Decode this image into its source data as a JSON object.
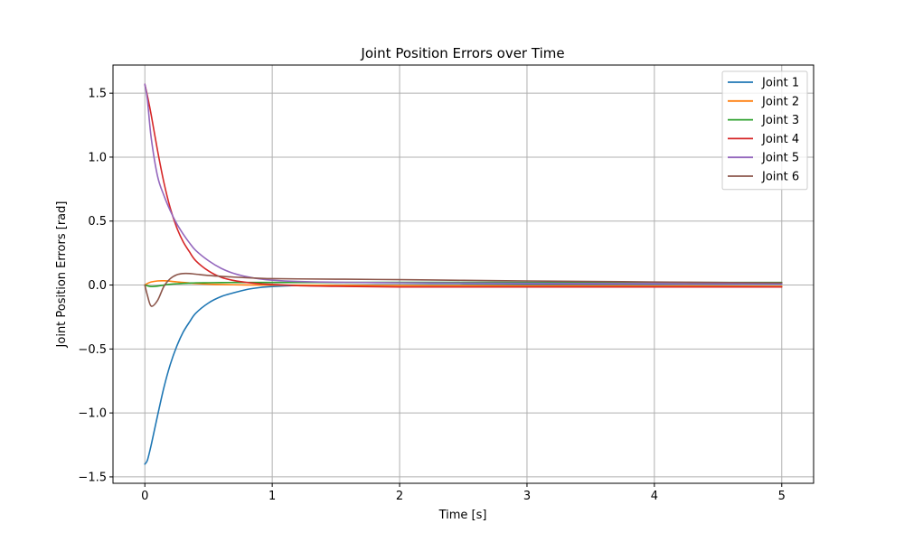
{
  "chart_data": {
    "type": "line",
    "title": "Joint Position Errors over Time",
    "xlabel": "Time [s]",
    "ylabel": "Joint Position Errors [rad]",
    "xlim": [
      -0.25,
      5.25
    ],
    "ylim": [
      -1.55,
      1.72
    ],
    "xticks": [
      0,
      1,
      2,
      3,
      4,
      5
    ],
    "xtick_labels": [
      "0",
      "1",
      "2",
      "3",
      "4",
      "5"
    ],
    "yticks": [
      -1.5,
      -1.0,
      -0.5,
      0.0,
      0.5,
      1.0,
      1.5
    ],
    "ytick_labels": [
      "−1.5",
      "−1.0",
      "−0.5",
      "0.0",
      "0.5",
      "1.0",
      "1.5"
    ],
    "grid": true,
    "legend_position": "top-right",
    "x": [
      0,
      0.02,
      0.05,
      0.1,
      0.15,
      0.2,
      0.25,
      0.3,
      0.35,
      0.4,
      0.5,
      0.6,
      0.7,
      0.8,
      0.9,
      1.0,
      1.2,
      1.5,
      2.0,
      2.5,
      3.0,
      3.5,
      4.0,
      4.5,
      5.0
    ],
    "series": [
      {
        "name": "Joint 1",
        "color": "#1f77b4",
        "values": [
          -1.4,
          -1.37,
          -1.25,
          -1.02,
          -0.8,
          -0.62,
          -0.48,
          -0.37,
          -0.29,
          -0.22,
          -0.14,
          -0.09,
          -0.06,
          -0.035,
          -0.02,
          -0.012,
          -0.004,
          0.0,
          0.002,
          0.003,
          0.004,
          0.005,
          0.006,
          0.007,
          0.008
        ]
      },
      {
        "name": "Joint 2",
        "color": "#ff7f0e",
        "values": [
          0.0,
          0.012,
          0.024,
          0.032,
          0.033,
          0.03,
          0.025,
          0.02,
          0.016,
          0.012,
          0.007,
          0.004,
          0.002,
          0.001,
          0.0,
          0.0,
          -0.001,
          -0.002,
          -0.003,
          -0.004,
          -0.005,
          -0.006,
          -0.007,
          -0.008,
          -0.01
        ]
      },
      {
        "name": "Joint 3",
        "color": "#2ca02c",
        "values": [
          0.0,
          -0.006,
          -0.012,
          -0.008,
          0.0,
          0.006,
          0.01,
          0.013,
          0.015,
          0.017,
          0.018,
          0.019,
          0.02,
          0.02,
          0.02,
          0.02,
          0.02,
          0.02,
          0.021,
          0.021,
          0.021,
          0.021,
          0.021,
          0.02,
          0.02
        ]
      },
      {
        "name": "Joint 4",
        "color": "#d62728",
        "values": [
          1.57,
          1.48,
          1.33,
          1.05,
          0.8,
          0.6,
          0.45,
          0.34,
          0.26,
          0.19,
          0.11,
          0.06,
          0.035,
          0.02,
          0.01,
          0.005,
          -0.005,
          -0.01,
          -0.015,
          -0.015,
          -0.015,
          -0.015,
          -0.015,
          -0.015,
          -0.015
        ]
      },
      {
        "name": "Joint 5",
        "color": "#9467bd",
        "values": [
          1.57,
          1.45,
          1.15,
          0.85,
          0.7,
          0.58,
          0.48,
          0.4,
          0.33,
          0.27,
          0.19,
          0.13,
          0.09,
          0.065,
          0.048,
          0.038,
          0.028,
          0.022,
          0.018,
          0.016,
          0.014,
          0.012,
          0.011,
          0.01,
          0.01
        ]
      },
      {
        "name": "Joint 6",
        "color": "#8c564b",
        "values": [
          0.0,
          -0.08,
          -0.165,
          -0.12,
          -0.01,
          0.05,
          0.08,
          0.09,
          0.09,
          0.085,
          0.075,
          0.068,
          0.062,
          0.057,
          0.053,
          0.05,
          0.048,
          0.046,
          0.042,
          0.037,
          0.032,
          0.028,
          0.024,
          0.02,
          0.017
        ]
      }
    ]
  }
}
